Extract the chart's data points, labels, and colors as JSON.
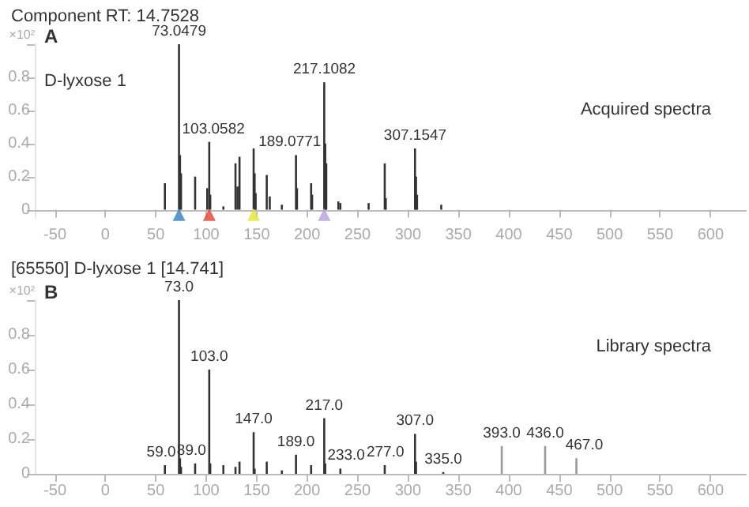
{
  "chart_data": [
    {
      "type": "bar",
      "title": "Component RT: 14.7528",
      "ylabel": "×10²",
      "annotations": [
        "A",
        "D-lyxose 1",
        "Acquired spectra",
        {
          "text": "73.0479",
          "x": 73.0479,
          "y": 1.0
        },
        {
          "text": "103.0582",
          "x": 103.0582,
          "y": 0.41
        },
        {
          "text": "189.0771",
          "x": 189.0771,
          "y": 0.33
        },
        {
          "text": "217.1082",
          "x": 217.1082,
          "y": 0.77
        },
        {
          "text": "307.1547",
          "x": 307.1547,
          "y": 0.37
        }
      ],
      "xlim": [
        -70,
        635
      ],
      "xticks": [
        -50,
        0,
        50,
        100,
        150,
        200,
        250,
        300,
        350,
        400,
        450,
        500,
        550,
        600
      ],
      "ylim": [
        -0.05,
        1.0
      ],
      "yticks": [
        0,
        0.2,
        0.4,
        0.6,
        0.8,
        {
          "value": 1.0,
          "label": null
        }
      ],
      "grid": false,
      "marker": "triangle",
      "series": [
        {
          "color": "#333333",
          "x": [
            59,
            73,
            74,
            75,
            89,
            101,
            103,
            104,
            117,
            129,
            131,
            133,
            147,
            148,
            149,
            160,
            163,
            175,
            189,
            190,
            204,
            205,
            217,
            218,
            219,
            231,
            233,
            261,
            277,
            278,
            307,
            308,
            309,
            333
          ],
          "values": [
            0.16,
            1.0,
            0.33,
            0.22,
            0.2,
            0.13,
            0.41,
            0.09,
            0.02,
            0.28,
            0.14,
            0.32,
            0.37,
            0.22,
            0.1,
            0.21,
            0.08,
            0.03,
            0.33,
            0.13,
            0.16,
            0.09,
            0.77,
            0.4,
            0.28,
            0.05,
            0.04,
            0.04,
            0.28,
            0.07,
            0.37,
            0.2,
            0.09,
            0.03
          ]
        },
        {
          "type": "scatter",
          "x": [
            73,
            103,
            147,
            217
          ],
          "values": [
            -0.03,
            -0.03,
            -0.03,
            -0.03
          ],
          "colors": [
            "#2f7fc1",
            "#e8402a",
            "#e6e62a",
            "#b39ddb"
          ]
        }
      ]
    },
    {
      "type": "bar",
      "title": "[65550] D-lyxose 1 [14.741]",
      "ylabel": "×10²",
      "annotations": [
        "B",
        "Library spectra",
        {
          "text": "59.0",
          "x": 59.0,
          "y": 0.05
        },
        {
          "text": "73.0",
          "x": 73.0,
          "y": 1.0
        },
        {
          "text": "89.0",
          "x": 89.0,
          "y": 0.06
        },
        {
          "text": "103.0",
          "x": 103.0,
          "y": 0.6
        },
        {
          "text": "147.0",
          "x": 147.0,
          "y": 0.24
        },
        {
          "text": "189.0",
          "x": 189.0,
          "y": 0.11
        },
        {
          "text": "217.0",
          "x": 217.0,
          "y": 0.32
        },
        {
          "text": "233.0",
          "x": 233.0,
          "y": 0.03
        },
        {
          "text": "277.0",
          "x": 277.0,
          "y": 0.05
        },
        {
          "text": "307.0",
          "x": 307.0,
          "y": 0.23
        },
        {
          "text": "335.0",
          "x": 335.0,
          "y": 0.01
        },
        {
          "text": "393.0",
          "x": 393.0,
          "y": 0.16
        },
        {
          "text": "436.0",
          "x": 436.0,
          "y": 0.16
        },
        {
          "text": "467.0",
          "x": 467.0,
          "y": 0.09
        }
      ],
      "xlim": [
        -70,
        635
      ],
      "xticks": [
        -50,
        0,
        50,
        100,
        150,
        200,
        250,
        300,
        350,
        400,
        450,
        500,
        550,
        600
      ],
      "ylim": [
        0,
        1.0
      ],
      "yticks": [
        0,
        0.2,
        0.4,
        0.6,
        0.8,
        {
          "value": 1.0,
          "label": null
        }
      ],
      "grid": false,
      "series": [
        {
          "colors": [
            "#333333",
            "#333333",
            "#333333",
            "#333333",
            "#333333",
            "#333333",
            "#333333",
            "#333333",
            "#333333",
            "#333333",
            "#333333",
            "#333333",
            "#333333",
            "#333333",
            "#333333",
            "#333333",
            "#333333",
            "#333333",
            "#333333",
            "#333333",
            "#333333",
            "#333333",
            "#333333",
            "#999999",
            "#999999",
            "#999999"
          ],
          "x": [
            59,
            73,
            74,
            75,
            89,
            103,
            104,
            117,
            129,
            133,
            147,
            148,
            160,
            175,
            189,
            204,
            217,
            218,
            233,
            277,
            307,
            308,
            335,
            393,
            436,
            467
          ],
          "values": [
            0.05,
            1.0,
            0.09,
            0.04,
            0.06,
            0.6,
            0.06,
            0.05,
            0.04,
            0.07,
            0.24,
            0.03,
            0.07,
            0.02,
            0.11,
            0.05,
            0.32,
            0.06,
            0.03,
            0.05,
            0.23,
            0.07,
            0.01,
            0.16,
            0.16,
            0.09
          ]
        }
      ]
    }
  ]
}
